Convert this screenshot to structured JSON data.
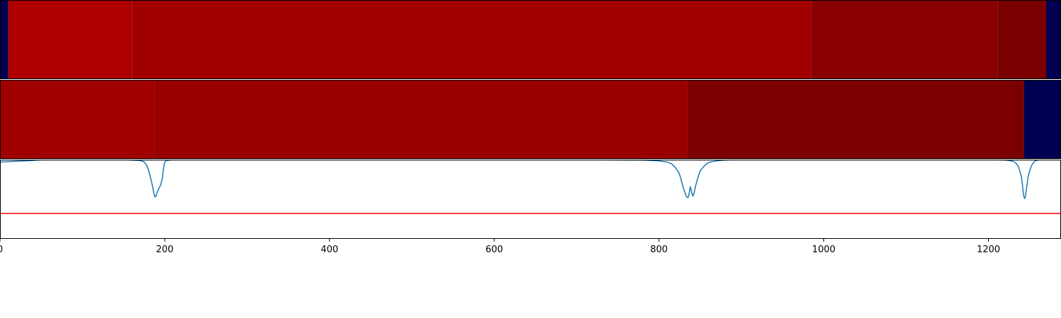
{
  "chart_data": [
    {
      "type": "heatmap",
      "xlim": [
        0,
        1288
      ],
      "segments": [
        {
          "start": 0,
          "end": 10,
          "color": "#000050"
        },
        {
          "start": 10,
          "end": 160,
          "color": "#ae0000"
        },
        {
          "start": 160,
          "end": 985,
          "color": "#a20000"
        },
        {
          "start": 985,
          "end": 1211,
          "color": "#8a0000"
        },
        {
          "start": 1211,
          "end": 1270,
          "color": "#7a0000"
        },
        {
          "start": 1270,
          "end": 1288,
          "color": "#000050"
        }
      ]
    },
    {
      "type": "heatmap",
      "xlim": [
        0,
        1288
      ],
      "segments": [
        {
          "start": 0,
          "end": 188,
          "color": "#a00000"
        },
        {
          "start": 188,
          "end": 835,
          "color": "#980000"
        },
        {
          "start": 835,
          "end": 1243,
          "color": "#7c0000"
        },
        {
          "start": 1243,
          "end": 1288,
          "color": "#000050"
        }
      ]
    },
    {
      "type": "line",
      "xlim": [
        0,
        1288
      ],
      "ylim": [
        0,
        1
      ],
      "grid": false,
      "xticks": [
        0,
        200,
        400,
        600,
        800,
        1000,
        1200
      ],
      "threshold": {
        "value": 0.32,
        "color": "#ff0000"
      },
      "series": [
        {
          "color": "#1f77b4",
          "x": [
            0,
            10,
            20,
            30,
            40,
            45,
            60,
            100,
            150,
            170,
            172,
            175,
            178,
            180,
            182,
            184,
            186,
            187,
            188,
            189,
            190,
            191,
            193,
            195,
            197,
            198,
            199,
            200,
            202,
            210,
            300,
            500,
            700,
            780,
            790,
            800,
            810,
            815,
            820,
            824,
            826,
            828,
            830,
            832,
            833,
            834,
            835,
            836,
            837,
            838,
            839,
            840,
            841,
            842,
            843,
            844,
            846,
            848,
            850,
            854,
            858,
            862,
            870,
            880,
            900,
            1000,
            1100,
            1200,
            1220,
            1225,
            1230,
            1233,
            1236,
            1238,
            1240,
            1241,
            1242,
            1243,
            1244,
            1245,
            1246,
            1247,
            1248,
            1250,
            1252,
            1254,
            1256,
            1258,
            1260,
            1265,
            1275,
            1288
          ],
          "y": [
            0.97,
            0.975,
            0.98,
            0.985,
            0.99,
            0.995,
            1.0,
            1.0,
            1.0,
            0.99,
            0.985,
            0.97,
            0.93,
            0.88,
            0.8,
            0.72,
            0.62,
            0.57,
            0.53,
            0.535,
            0.56,
            0.59,
            0.64,
            0.68,
            0.76,
            0.85,
            0.92,
            0.97,
            0.99,
            1.0,
            1.0,
            1.0,
            1.0,
            0.995,
            0.99,
            0.985,
            0.97,
            0.95,
            0.9,
            0.84,
            0.78,
            0.7,
            0.63,
            0.57,
            0.54,
            0.53,
            0.52,
            0.54,
            0.6,
            0.66,
            0.62,
            0.57,
            0.54,
            0.56,
            0.6,
            0.65,
            0.73,
            0.8,
            0.86,
            0.91,
            0.95,
            0.97,
            0.985,
            0.995,
            1.0,
            1.0,
            1.0,
            1.0,
            0.995,
            0.99,
            0.98,
            0.96,
            0.92,
            0.86,
            0.78,
            0.7,
            0.6,
            0.53,
            0.51,
            0.55,
            0.63,
            0.7,
            0.78,
            0.86,
            0.92,
            0.955,
            0.98,
            0.99,
            0.995,
            1.0,
            1.0,
            1.0
          ]
        }
      ]
    }
  ]
}
